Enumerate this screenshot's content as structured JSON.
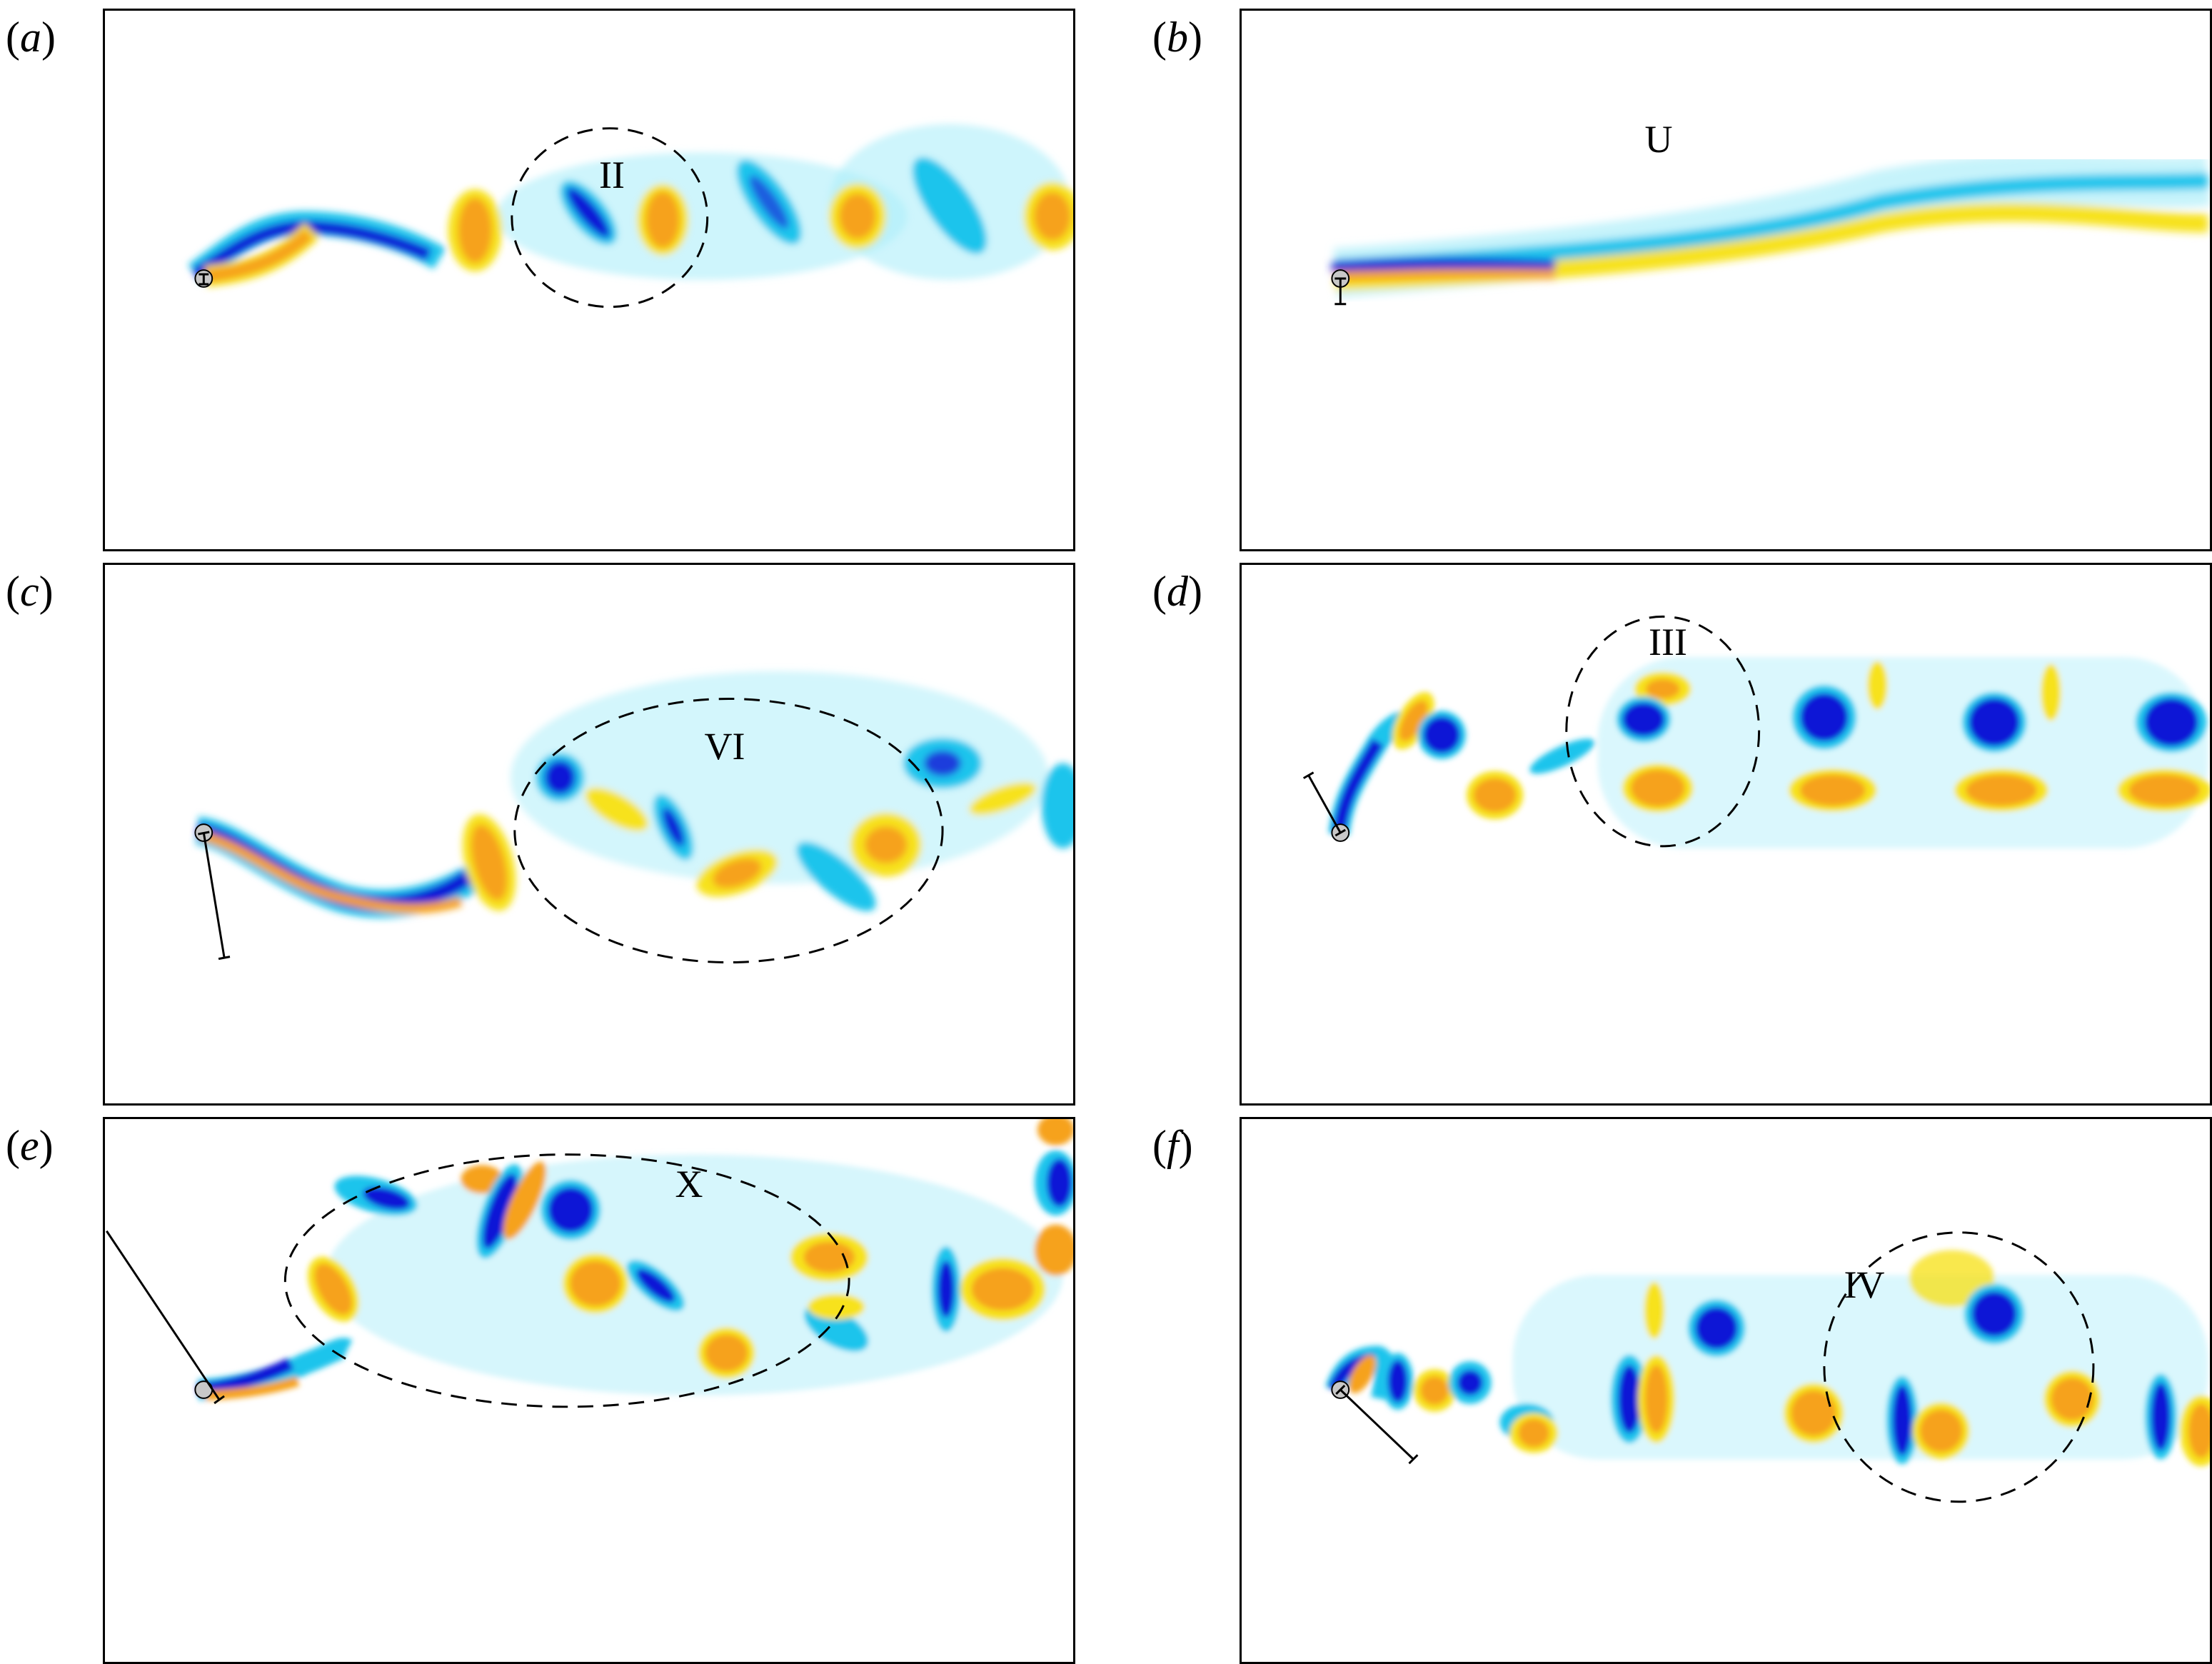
{
  "colors": {
    "negative_vorticity": "#0a14d6",
    "negative_halo": "#1fc4ec",
    "negative_faint": "#aeeefa",
    "positive_vorticity": "#f6a21a",
    "positive_halo": "#f7e21e",
    "positive_faint": "#fbf3a6",
    "frame": "#000000"
  },
  "panels": [
    {
      "id": "a",
      "letter": "a",
      "open": "(",
      "close": ")",
      "mode_label": "II"
    },
    {
      "id": "b",
      "letter": "b",
      "open": "(",
      "close": ")",
      "mode_label": "U"
    },
    {
      "id": "c",
      "letter": "c",
      "open": "(",
      "close": ")",
      "mode_label": "VI"
    },
    {
      "id": "d",
      "letter": "d",
      "open": "(",
      "close": ")",
      "mode_label": "III"
    },
    {
      "id": "e",
      "letter": "e",
      "open": "(",
      "close": ")",
      "mode_label": "X"
    },
    {
      "id": "f",
      "letter": "f",
      "open": "(",
      "close": ")",
      "mode_label": "IV"
    }
  ]
}
